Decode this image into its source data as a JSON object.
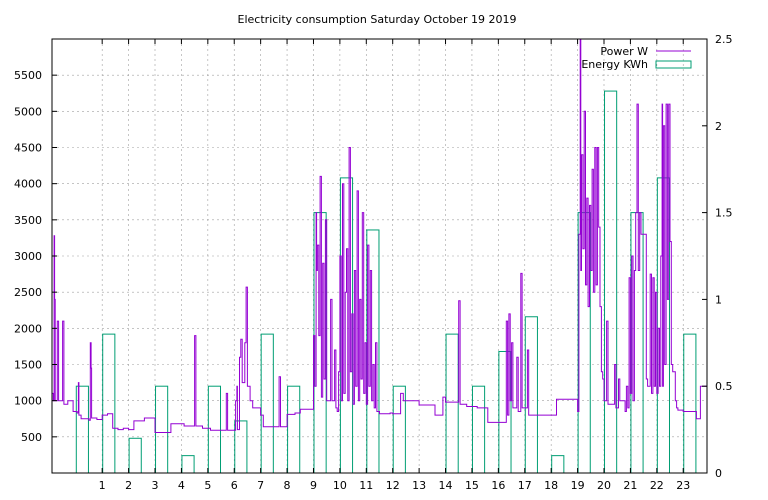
{
  "chart_data": {
    "type": "line",
    "title": "Electricity consumption Saturday October 19 2019",
    "xlabel": "",
    "ylabel": "",
    "xlim": [
      -0.9,
      23.9
    ],
    "ylim": [
      0,
      6000
    ],
    "y2lim": [
      0,
      2.5
    ],
    "grid": true,
    "legend_position": "top-right",
    "x_ticks": [
      1,
      2,
      3,
      4,
      5,
      6,
      7,
      8,
      9,
      10,
      11,
      12,
      13,
      14,
      15,
      16,
      17,
      18,
      19,
      20,
      21,
      22,
      23
    ],
    "y_ticks": [
      500,
      1000,
      1500,
      2000,
      2500,
      3000,
      3500,
      4000,
      4500,
      5000,
      5500
    ],
    "y2_ticks": [
      0,
      0.5,
      1,
      1.5,
      2,
      2.5
    ],
    "series": [
      {
        "name": "Energy KWh",
        "type": "bar",
        "axis": "y2",
        "color": "#009e73",
        "x": [
          0,
          1,
          2,
          3,
          4,
          5,
          6,
          7,
          8,
          9,
          10,
          11,
          12,
          13,
          14,
          15,
          16,
          17,
          18,
          19,
          20,
          21,
          22,
          23
        ],
        "values": [
          0.5,
          0.8,
          0.2,
          0.5,
          0.1,
          0.5,
          0.3,
          0.8,
          0.5,
          1.5,
          1.7,
          1.4,
          0.5,
          0.0,
          0.8,
          0.5,
          0.7,
          0.9,
          0.1,
          1.5,
          2.2,
          1.5,
          1.7,
          0.8
        ]
      },
      {
        "name": "Power W",
        "type": "line",
        "axis": "y",
        "color": "#9400d3",
        "points": [
          [
            -0.9,
            1100
          ],
          [
            -0.85,
            1000
          ],
          [
            -0.82,
            3280
          ],
          [
            -0.8,
            2400
          ],
          [
            -0.78,
            1000
          ],
          [
            -0.7,
            2100
          ],
          [
            -0.65,
            1000
          ],
          [
            -0.55,
            1000
          ],
          [
            -0.5,
            2100
          ],
          [
            -0.45,
            950
          ],
          [
            -0.3,
            1000
          ],
          [
            -0.1,
            850
          ],
          [
            0.0,
            850
          ],
          [
            0.05,
            830
          ],
          [
            0.1,
            1250
          ],
          [
            0.12,
            800
          ],
          [
            0.2,
            750
          ],
          [
            0.4,
            750
          ],
          [
            0.5,
            730
          ],
          [
            0.55,
            1800
          ],
          [
            0.58,
            1450
          ],
          [
            0.6,
            760
          ],
          [
            0.8,
            740
          ],
          [
            0.95,
            740
          ],
          [
            1.0,
            800
          ],
          [
            1.2,
            820
          ],
          [
            1.4,
            620
          ],
          [
            1.6,
            600
          ],
          [
            1.8,
            620
          ],
          [
            2.0,
            600
          ],
          [
            2.2,
            720
          ],
          [
            2.4,
            720
          ],
          [
            2.6,
            760
          ],
          [
            2.8,
            760
          ],
          [
            3.0,
            560
          ],
          [
            3.2,
            560
          ],
          [
            3.5,
            560
          ],
          [
            3.6,
            680
          ],
          [
            3.9,
            680
          ],
          [
            4.1,
            650
          ],
          [
            4.3,
            650
          ],
          [
            4.5,
            1900
          ],
          [
            4.55,
            650
          ],
          [
            4.8,
            620
          ],
          [
            4.95,
            620
          ],
          [
            5.1,
            590
          ],
          [
            5.4,
            590
          ],
          [
            5.6,
            590
          ],
          [
            5.7,
            1100
          ],
          [
            5.75,
            590
          ],
          [
            5.95,
            590
          ],
          [
            6.05,
            1000
          ],
          [
            6.1,
            1200
          ],
          [
            6.12,
            600
          ],
          [
            6.2,
            1600
          ],
          [
            6.25,
            1850
          ],
          [
            6.3,
            1250
          ],
          [
            6.4,
            1800
          ],
          [
            6.45,
            2570
          ],
          [
            6.5,
            1200
          ],
          [
            6.6,
            1000
          ],
          [
            6.7,
            900
          ],
          [
            6.8,
            900
          ],
          [
            7.0,
            800
          ],
          [
            7.1,
            640
          ],
          [
            7.4,
            640
          ],
          [
            7.6,
            640
          ],
          [
            7.7,
            1330
          ],
          [
            7.75,
            640
          ],
          [
            7.95,
            640
          ],
          [
            8.0,
            810
          ],
          [
            8.3,
            830
          ],
          [
            8.5,
            880
          ],
          [
            8.9,
            880
          ],
          [
            9.0,
            1900
          ],
          [
            9.05,
            1200
          ],
          [
            9.1,
            3600
          ],
          [
            9.12,
            2800
          ],
          [
            9.15,
            3150
          ],
          [
            9.2,
            1900
          ],
          [
            9.25,
            4100
          ],
          [
            9.3,
            1050
          ],
          [
            9.35,
            2900
          ],
          [
            9.4,
            1300
          ],
          [
            9.45,
            3500
          ],
          [
            9.5,
            1000
          ],
          [
            9.6,
            1000
          ],
          [
            9.65,
            2400
          ],
          [
            9.7,
            1000
          ],
          [
            9.8,
            1700
          ],
          [
            9.85,
            900
          ],
          [
            9.9,
            850
          ],
          [
            9.95,
            1400
          ],
          [
            10.0,
            3000
          ],
          [
            10.05,
            1000
          ],
          [
            10.1,
            4000
          ],
          [
            10.15,
            1100
          ],
          [
            10.2,
            2500
          ],
          [
            10.25,
            3100
          ],
          [
            10.3,
            1000
          ],
          [
            10.35,
            4500
          ],
          [
            10.4,
            1400
          ],
          [
            10.45,
            2200
          ],
          [
            10.5,
            950
          ],
          [
            10.55,
            2800
          ],
          [
            10.6,
            1200
          ],
          [
            10.65,
            3900
          ],
          [
            10.7,
            1000
          ],
          [
            10.75,
            2400
          ],
          [
            10.8,
            1300
          ],
          [
            10.85,
            3600
          ],
          [
            10.9,
            1100
          ],
          [
            10.95,
            1800
          ],
          [
            11.0,
            950
          ],
          [
            11.05,
            3150
          ],
          [
            11.1,
            1200
          ],
          [
            11.15,
            2800
          ],
          [
            11.2,
            1000
          ],
          [
            11.25,
            1500
          ],
          [
            11.3,
            900
          ],
          [
            11.35,
            1800
          ],
          [
            11.4,
            850
          ],
          [
            11.5,
            820
          ],
          [
            11.7,
            820
          ],
          [
            11.9,
            830
          ],
          [
            12.0,
            820
          ],
          [
            12.2,
            820
          ],
          [
            12.3,
            1100
          ],
          [
            12.4,
            1000
          ],
          [
            12.6,
            1000
          ],
          [
            12.8,
            1000
          ],
          [
            13.0,
            940
          ],
          [
            13.3,
            940
          ],
          [
            13.5,
            940
          ],
          [
            13.6,
            800
          ],
          [
            13.8,
            800
          ],
          [
            13.9,
            1050
          ],
          [
            14.0,
            980
          ],
          [
            14.4,
            980
          ],
          [
            14.5,
            2380
          ],
          [
            14.55,
            950
          ],
          [
            14.8,
            920
          ],
          [
            15.0,
            920
          ],
          [
            15.2,
            900
          ],
          [
            15.4,
            900
          ],
          [
            15.6,
            700
          ],
          [
            16.0,
            700
          ],
          [
            16.2,
            700
          ],
          [
            16.3,
            2100
          ],
          [
            16.35,
            800
          ],
          [
            16.4,
            2200
          ],
          [
            16.45,
            1000
          ],
          [
            16.5,
            1800
          ],
          [
            16.55,
            900
          ],
          [
            16.7,
            1600
          ],
          [
            16.75,
            850
          ],
          [
            16.85,
            2760
          ],
          [
            16.9,
            900
          ],
          [
            17.0,
            900
          ],
          [
            17.1,
            1700
          ],
          [
            17.15,
            800
          ],
          [
            17.2,
            800
          ],
          [
            17.4,
            800
          ],
          [
            17.8,
            800
          ],
          [
            18.0,
            800
          ],
          [
            18.2,
            1020
          ],
          [
            18.6,
            1020
          ],
          [
            18.9,
            1020
          ],
          [
            19.0,
            850
          ],
          [
            19.05,
            3300
          ],
          [
            19.1,
            6000
          ],
          [
            19.12,
            2800
          ],
          [
            19.15,
            4400
          ],
          [
            19.2,
            3100
          ],
          [
            19.25,
            5000
          ],
          [
            19.3,
            2600
          ],
          [
            19.35,
            3800
          ],
          [
            19.4,
            2300
          ],
          [
            19.45,
            3700
          ],
          [
            19.5,
            2800
          ],
          [
            19.55,
            4200
          ],
          [
            19.6,
            2500
          ],
          [
            19.65,
            4500
          ],
          [
            19.7,
            2600
          ],
          [
            19.75,
            4500
          ],
          [
            19.8,
            3400
          ],
          [
            19.85,
            2300
          ],
          [
            19.9,
            1400
          ],
          [
            19.95,
            1300
          ],
          [
            20.0,
            1000
          ],
          [
            20.1,
            2100
          ],
          [
            20.15,
            950
          ],
          [
            20.3,
            950
          ],
          [
            20.4,
            1500
          ],
          [
            20.45,
            900
          ],
          [
            20.55,
            1300
          ],
          [
            20.6,
            1000
          ],
          [
            20.7,
            1000
          ],
          [
            20.8,
            850
          ],
          [
            20.85,
            1200
          ],
          [
            20.9,
            900
          ],
          [
            20.95,
            2700
          ],
          [
            21.0,
            1100
          ],
          [
            21.05,
            3000
          ],
          [
            21.1,
            1000
          ],
          [
            21.15,
            2800
          ],
          [
            21.2,
            3600
          ],
          [
            21.25,
            5100
          ],
          [
            21.3,
            2800
          ],
          [
            21.35,
            3600
          ],
          [
            21.4,
            3300
          ],
          [
            21.5,
            3300
          ],
          [
            21.6,
            1300
          ],
          [
            21.65,
            1200
          ],
          [
            21.7,
            1200
          ],
          [
            21.75,
            2750
          ],
          [
            21.8,
            1100
          ],
          [
            21.85,
            2700
          ],
          [
            21.9,
            1200
          ],
          [
            21.95,
            2500
          ],
          [
            22.0,
            1100
          ],
          [
            22.05,
            2000
          ],
          [
            22.1,
            1200
          ],
          [
            22.15,
            3000
          ],
          [
            22.2,
            5100
          ],
          [
            22.22,
            1200
          ],
          [
            22.25,
            4800
          ],
          [
            22.3,
            1500
          ],
          [
            22.35,
            5100
          ],
          [
            22.4,
            2400
          ],
          [
            22.45,
            5100
          ],
          [
            22.5,
            3200
          ],
          [
            22.55,
            1500
          ],
          [
            22.6,
            1400
          ],
          [
            22.7,
            1000
          ],
          [
            22.75,
            900
          ],
          [
            22.8,
            870
          ],
          [
            23.0,
            850
          ],
          [
            23.3,
            850
          ],
          [
            23.4,
            850
          ],
          [
            23.5,
            750
          ],
          [
            23.6,
            750
          ],
          [
            23.65,
            1200
          ],
          [
            23.9,
            1200
          ]
        ]
      }
    ]
  }
}
